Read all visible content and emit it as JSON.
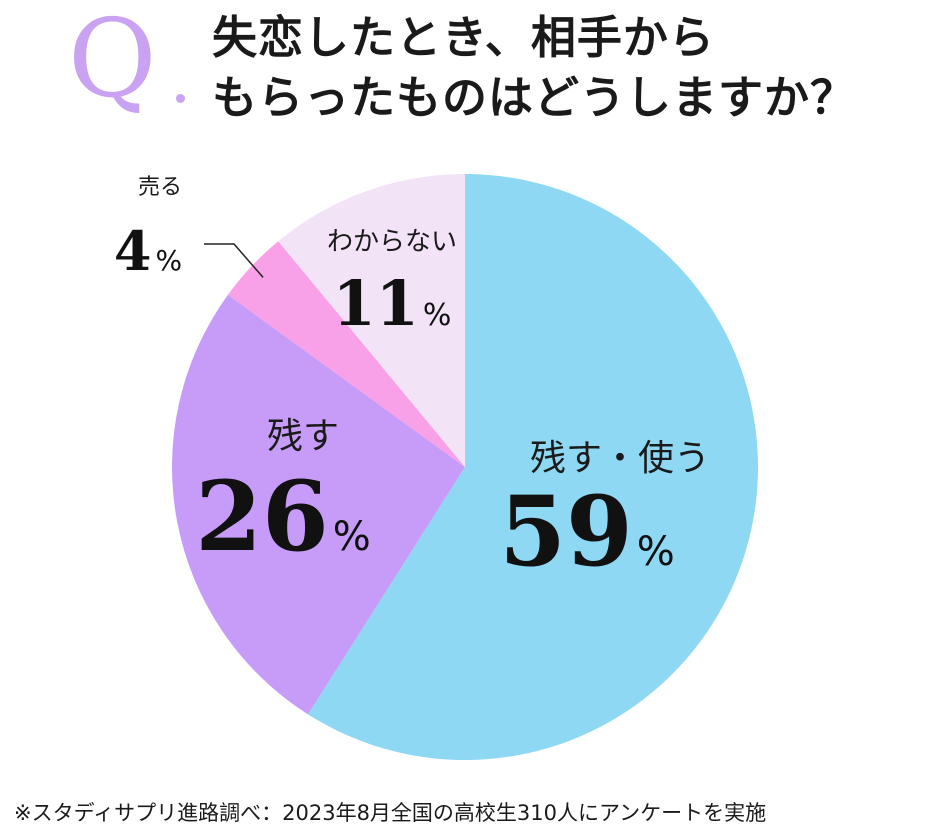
{
  "question": {
    "mark": "Q",
    "line1": "失恋したとき、相手から",
    "line2": "もらったものはどうしますか？"
  },
  "chart_data": {
    "type": "pie",
    "unit": "%",
    "start_angle_deg": 0,
    "direction": "clockwise",
    "slices": [
      {
        "label": "残す・使う",
        "value": 59,
        "color": "#8ed8f4"
      },
      {
        "label": "残す",
        "value": 26,
        "color": "#c69cf8"
      },
      {
        "label": "売る",
        "value": 4,
        "color": "#f8a0e8"
      },
      {
        "label": "わからない",
        "value": 11,
        "color": "#f2e4f6"
      }
    ]
  },
  "footnote": "※スタディサプリ進路調べ：2023年8月全国の高校生310人にアンケートを実施"
}
